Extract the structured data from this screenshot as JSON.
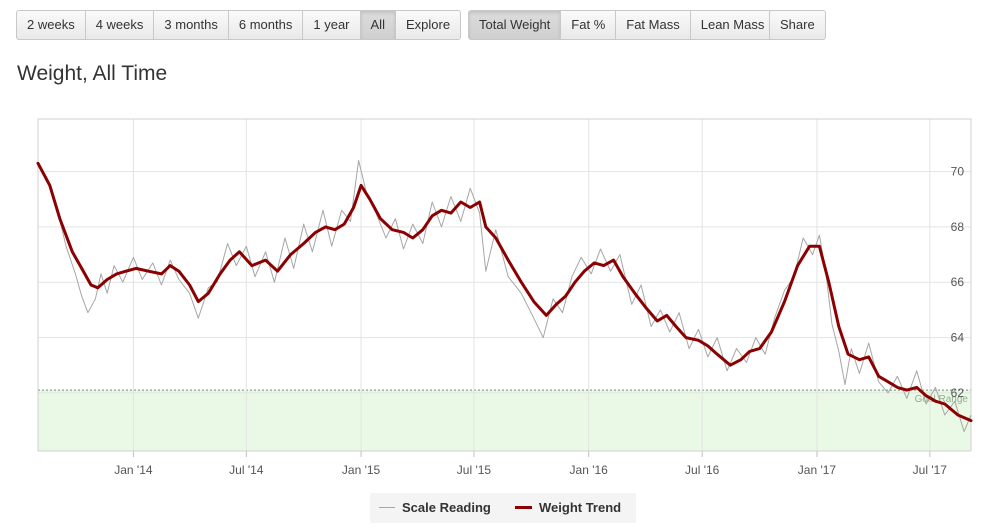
{
  "toolbar": {
    "range_buttons": [
      "2 weeks",
      "4 weeks",
      "3 months",
      "6 months",
      "1 year",
      "All",
      "Explore"
    ],
    "range_active": "All",
    "metric_buttons": [
      "Total Weight",
      "Fat %",
      "Fat Mass",
      "Lean Mass"
    ],
    "metric_active": "Total Weight",
    "share_label": "Share"
  },
  "page_title": "Weight, All Time",
  "colors": {
    "trend": "#8b0000",
    "scale": "#a6a6a6",
    "goal_band": "#e9f9e6",
    "grid": "#e3e3e3"
  },
  "chart_data": {
    "type": "line",
    "x_ticks": [
      "Jan '14",
      "Jul '14",
      "Jan '15",
      "Jul '15",
      "Jan '16",
      "Jul '16",
      "Jan '17",
      "Jul '17"
    ],
    "y_ticks": [
      62,
      64,
      66,
      68,
      70
    ],
    "ylim": [
      59.9,
      71.9
    ],
    "xlim": [
      "2013-08-01",
      "2017-09-05"
    ],
    "goal_band": {
      "label": "Goal Range",
      "upper": 62.1
    },
    "legend": {
      "position": "bottom-center"
    },
    "grid": true,
    "series": [
      {
        "name": "Weight Trend",
        "points": [
          [
            "2013-08-01",
            70.3
          ],
          [
            "2013-08-20",
            69.5
          ],
          [
            "2013-09-05",
            68.3
          ],
          [
            "2013-09-25",
            67.1
          ],
          [
            "2013-10-10",
            66.5
          ],
          [
            "2013-10-25",
            65.9
          ],
          [
            "2013-11-05",
            65.8
          ],
          [
            "2013-11-20",
            66.1
          ],
          [
            "2013-12-05",
            66.3
          ],
          [
            "2013-12-20",
            66.4
          ],
          [
            "2014-01-05",
            66.5
          ],
          [
            "2014-01-25",
            66.4
          ],
          [
            "2014-02-15",
            66.3
          ],
          [
            "2014-03-01",
            66.6
          ],
          [
            "2014-03-15",
            66.4
          ],
          [
            "2014-04-01",
            65.9
          ],
          [
            "2014-04-15",
            65.3
          ],
          [
            "2014-05-01",
            65.6
          ],
          [
            "2014-05-20",
            66.3
          ],
          [
            "2014-06-05",
            66.8
          ],
          [
            "2014-06-20",
            67.1
          ],
          [
            "2014-07-10",
            66.6
          ],
          [
            "2014-08-01",
            66.8
          ],
          [
            "2014-08-20",
            66.4
          ],
          [
            "2014-09-10",
            67.0
          ],
          [
            "2014-10-01",
            67.4
          ],
          [
            "2014-10-20",
            67.8
          ],
          [
            "2014-11-05",
            68.0
          ],
          [
            "2014-11-20",
            67.9
          ],
          [
            "2014-12-05",
            68.1
          ],
          [
            "2014-12-20",
            68.7
          ],
          [
            "2015-01-01",
            69.5
          ],
          [
            "2015-01-15",
            69.0
          ],
          [
            "2015-02-01",
            68.3
          ],
          [
            "2015-02-20",
            67.9
          ],
          [
            "2015-03-10",
            67.8
          ],
          [
            "2015-03-25",
            67.6
          ],
          [
            "2015-04-10",
            67.9
          ],
          [
            "2015-04-25",
            68.4
          ],
          [
            "2015-05-10",
            68.6
          ],
          [
            "2015-05-25",
            68.5
          ],
          [
            "2015-06-10",
            68.9
          ],
          [
            "2015-06-25",
            68.7
          ],
          [
            "2015-07-10",
            68.9
          ],
          [
            "2015-07-20",
            68.0
          ],
          [
            "2015-08-05",
            67.6
          ],
          [
            "2015-08-25",
            66.8
          ],
          [
            "2015-09-15",
            66.0
          ],
          [
            "2015-10-05",
            65.3
          ],
          [
            "2015-10-25",
            64.8
          ],
          [
            "2015-11-10",
            65.2
          ],
          [
            "2015-11-25",
            65.5
          ],
          [
            "2015-12-10",
            66.0
          ],
          [
            "2015-12-25",
            66.4
          ],
          [
            "2016-01-10",
            66.7
          ],
          [
            "2016-01-25",
            66.6
          ],
          [
            "2016-02-10",
            66.8
          ],
          [
            "2016-02-25",
            66.2
          ],
          [
            "2016-03-15",
            65.6
          ],
          [
            "2016-04-01",
            65.1
          ],
          [
            "2016-04-20",
            64.6
          ],
          [
            "2016-05-05",
            64.8
          ],
          [
            "2016-05-20",
            64.4
          ],
          [
            "2016-06-05",
            64.0
          ],
          [
            "2016-06-25",
            63.9
          ],
          [
            "2016-07-10",
            63.7
          ],
          [
            "2016-07-25",
            63.4
          ],
          [
            "2016-08-15",
            63.0
          ],
          [
            "2016-09-01",
            63.2
          ],
          [
            "2016-09-15",
            63.5
          ],
          [
            "2016-10-01",
            63.6
          ],
          [
            "2016-10-20",
            64.2
          ],
          [
            "2016-11-10",
            65.3
          ],
          [
            "2016-12-01",
            66.6
          ],
          [
            "2016-12-20",
            67.3
          ],
          [
            "2017-01-05",
            67.3
          ],
          [
            "2017-01-20",
            66.0
          ],
          [
            "2017-02-05",
            64.4
          ],
          [
            "2017-02-20",
            63.4
          ],
          [
            "2017-03-10",
            63.2
          ],
          [
            "2017-03-25",
            63.3
          ],
          [
            "2017-04-10",
            62.6
          ],
          [
            "2017-04-25",
            62.4
          ],
          [
            "2017-05-10",
            62.2
          ],
          [
            "2017-05-25",
            62.1
          ],
          [
            "2017-06-10",
            62.2
          ],
          [
            "2017-06-25",
            61.9
          ],
          [
            "2017-07-10",
            61.7
          ],
          [
            "2017-07-25",
            61.6
          ],
          [
            "2017-08-15",
            61.2
          ],
          [
            "2017-09-05",
            61.0
          ]
        ]
      },
      {
        "name": "Scale Reading",
        "points": [
          [
            "2013-08-01",
            70.2
          ],
          [
            "2013-08-15",
            69.8
          ],
          [
            "2013-09-01",
            68.6
          ],
          [
            "2013-09-15",
            67.3
          ],
          [
            "2013-09-30",
            66.3
          ],
          [
            "2013-10-10",
            65.5
          ],
          [
            "2013-10-20",
            64.9
          ],
          [
            "2013-11-01",
            65.4
          ],
          [
            "2013-11-10",
            66.3
          ],
          [
            "2013-11-20",
            65.6
          ],
          [
            "2013-12-01",
            66.6
          ],
          [
            "2013-12-15",
            66.0
          ],
          [
            "2014-01-01",
            66.9
          ],
          [
            "2014-01-15",
            66.1
          ],
          [
            "2014-02-01",
            66.7
          ],
          [
            "2014-02-15",
            65.9
          ],
          [
            "2014-03-01",
            66.8
          ],
          [
            "2014-03-15",
            66.1
          ],
          [
            "2014-04-01",
            65.6
          ],
          [
            "2014-04-15",
            64.7
          ],
          [
            "2014-05-01",
            65.8
          ],
          [
            "2014-05-15",
            66.0
          ],
          [
            "2014-06-01",
            67.4
          ],
          [
            "2014-06-15",
            66.6
          ],
          [
            "2014-07-01",
            67.3
          ],
          [
            "2014-07-15",
            66.2
          ],
          [
            "2014-08-01",
            67.1
          ],
          [
            "2014-08-15",
            66.0
          ],
          [
            "2014-09-01",
            67.6
          ],
          [
            "2014-09-15",
            66.5
          ],
          [
            "2014-10-01",
            68.1
          ],
          [
            "2014-10-15",
            67.1
          ],
          [
            "2014-11-01",
            68.6
          ],
          [
            "2014-11-15",
            67.3
          ],
          [
            "2014-12-01",
            68.6
          ],
          [
            "2014-12-15",
            68.2
          ],
          [
            "2014-12-28",
            70.4
          ],
          [
            "2015-01-10",
            69.2
          ],
          [
            "2015-01-25",
            68.5
          ],
          [
            "2015-02-10",
            67.6
          ],
          [
            "2015-02-25",
            68.3
          ],
          [
            "2015-03-10",
            67.2
          ],
          [
            "2015-03-25",
            68.1
          ],
          [
            "2015-04-10",
            67.4
          ],
          [
            "2015-04-25",
            68.9
          ],
          [
            "2015-05-10",
            68.0
          ],
          [
            "2015-05-25",
            69.1
          ],
          [
            "2015-06-10",
            68.2
          ],
          [
            "2015-06-25",
            69.4
          ],
          [
            "2015-07-10",
            68.5
          ],
          [
            "2015-07-20",
            66.4
          ],
          [
            "2015-08-05",
            67.9
          ],
          [
            "2015-08-25",
            66.2
          ],
          [
            "2015-09-15",
            65.6
          ],
          [
            "2015-10-05",
            64.7
          ],
          [
            "2015-10-20",
            64.0
          ],
          [
            "2015-11-05",
            65.4
          ],
          [
            "2015-11-20",
            64.9
          ],
          [
            "2015-12-05",
            66.2
          ],
          [
            "2015-12-20",
            66.9
          ],
          [
            "2016-01-05",
            66.3
          ],
          [
            "2016-01-20",
            67.2
          ],
          [
            "2016-02-05",
            66.4
          ],
          [
            "2016-02-20",
            67.0
          ],
          [
            "2016-03-10",
            65.2
          ],
          [
            "2016-03-25",
            65.9
          ],
          [
            "2016-04-10",
            64.4
          ],
          [
            "2016-04-25",
            65.0
          ],
          [
            "2016-05-10",
            64.2
          ],
          [
            "2016-05-25",
            64.9
          ],
          [
            "2016-06-10",
            63.6
          ],
          [
            "2016-06-25",
            64.3
          ],
          [
            "2016-07-10",
            63.3
          ],
          [
            "2016-07-25",
            64.0
          ],
          [
            "2016-08-10",
            62.8
          ],
          [
            "2016-08-25",
            63.6
          ],
          [
            "2016-09-10",
            63.1
          ],
          [
            "2016-09-25",
            64.0
          ],
          [
            "2016-10-10",
            63.4
          ],
          [
            "2016-10-25",
            64.7
          ],
          [
            "2016-11-10",
            65.7
          ],
          [
            "2016-11-25",
            66.2
          ],
          [
            "2016-12-10",
            67.6
          ],
          [
            "2016-12-25",
            67.0
          ],
          [
            "2017-01-05",
            67.7
          ],
          [
            "2017-01-15",
            66.4
          ],
          [
            "2017-01-25",
            64.5
          ],
          [
            "2017-02-05",
            63.5
          ],
          [
            "2017-02-15",
            62.3
          ],
          [
            "2017-02-25",
            63.6
          ],
          [
            "2017-03-10",
            62.7
          ],
          [
            "2017-03-25",
            63.8
          ],
          [
            "2017-04-10",
            62.4
          ],
          [
            "2017-04-25",
            62.0
          ],
          [
            "2017-05-10",
            62.6
          ],
          [
            "2017-05-25",
            61.8
          ],
          [
            "2017-06-10",
            62.8
          ],
          [
            "2017-06-25",
            61.6
          ],
          [
            "2017-07-10",
            62.2
          ],
          [
            "2017-07-25",
            61.2
          ],
          [
            "2017-08-10",
            61.7
          ],
          [
            "2017-08-25",
            60.6
          ],
          [
            "2017-09-05",
            61.2
          ]
        ]
      }
    ]
  }
}
